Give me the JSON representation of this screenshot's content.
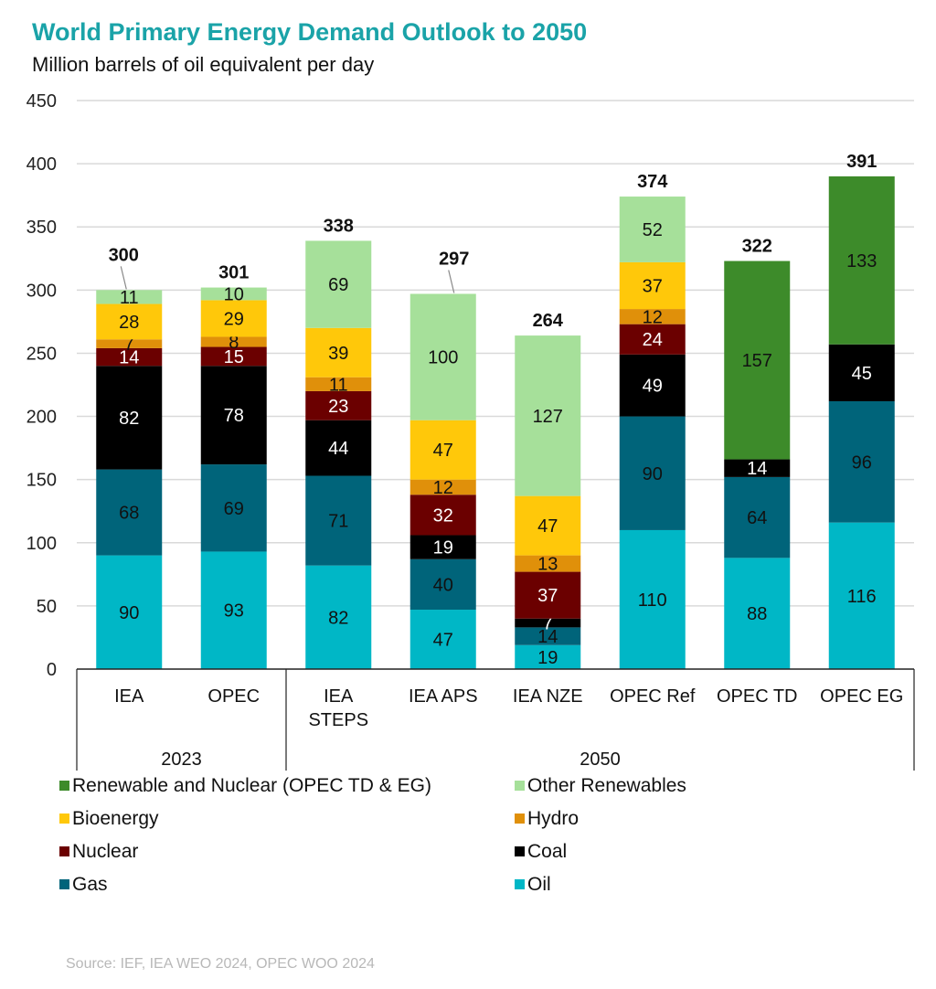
{
  "chart_data": {
    "type": "bar",
    "stacked": true,
    "title": "World Primary Energy Demand Outlook to 2050",
    "subtitle": "Million barrels of oil equivalent per day",
    "xlabel": "",
    "ylabel": "",
    "ylim": [
      0,
      450
    ],
    "yticks": [
      0,
      50,
      100,
      150,
      200,
      250,
      300,
      350,
      400,
      450
    ],
    "grid": true,
    "categories": [
      "IEA",
      "OPEC",
      "IEA STEPS",
      "IEA APS",
      "IEA NZE",
      "OPEC Ref",
      "OPEC TD",
      "OPEC EG"
    ],
    "category_lines": [
      [
        "IEA"
      ],
      [
        "OPEC"
      ],
      [
        "IEA",
        "STEPS"
      ],
      [
        "IEA APS"
      ],
      [
        "IEA NZE"
      ],
      [
        "OPEC Ref"
      ],
      [
        "OPEC TD"
      ],
      [
        "OPEC EG"
      ]
    ],
    "groups": [
      {
        "label": "2023",
        "categories": [
          "IEA",
          "OPEC"
        ]
      },
      {
        "label": "2050",
        "categories": [
          "IEA STEPS",
          "IEA APS",
          "IEA NZE",
          "OPEC Ref",
          "OPEC TD",
          "OPEC EG"
        ]
      }
    ],
    "totals": [
      300,
      301,
      338,
      297,
      264,
      374,
      322,
      391
    ],
    "series": [
      {
        "name": "Oil",
        "color": "#00b7c6",
        "label_color": "#111111",
        "values": [
          90,
          93,
          82,
          47,
          19,
          110,
          88,
          116
        ]
      },
      {
        "name": "Gas",
        "color": "#00647a",
        "label_color": "#111111",
        "values": [
          68,
          69,
          71,
          40,
          14,
          90,
          64,
          96
        ]
      },
      {
        "name": "Coal",
        "color": "#000000",
        "label_color": "#ffffff",
        "values": [
          82,
          78,
          44,
          19,
          7,
          49,
          14,
          45
        ]
      },
      {
        "name": "Nuclear",
        "color": "#6b0000",
        "label_color": "#ffffff",
        "values": [
          14,
          15,
          23,
          32,
          37,
          24,
          null,
          null
        ]
      },
      {
        "name": "Hydro",
        "color": "#e0900a",
        "label_color": "#111111",
        "values": [
          7,
          8,
          11,
          12,
          13,
          12,
          null,
          null
        ]
      },
      {
        "name": "Bioenergy",
        "color": "#ffc80a",
        "label_color": "#111111",
        "values": [
          28,
          29,
          39,
          47,
          47,
          37,
          null,
          null
        ]
      },
      {
        "name": "Other Renewables",
        "color": "#a6e09a",
        "label_color": "#111111",
        "values": [
          11,
          10,
          69,
          100,
          127,
          52,
          null,
          null
        ]
      },
      {
        "name": "Renewable and Nuclear (OPEC TD & EG)",
        "color": "#3d8b2a",
        "label_color": "#111111",
        "values": [
          null,
          null,
          null,
          null,
          null,
          null,
          157,
          133
        ]
      }
    ],
    "legend": {
      "placement": "bottom",
      "items": [
        {
          "name": "Renewable and Nuclear (OPEC TD & EG)",
          "color": "#3d8b2a"
        },
        {
          "name": "Other Renewables",
          "color": "#a6e09a"
        },
        {
          "name": "Bioenergy",
          "color": "#ffc80a"
        },
        {
          "name": "Hydro",
          "color": "#e0900a"
        },
        {
          "name": "Nuclear",
          "color": "#6b0000"
        },
        {
          "name": "Coal",
          "color": "#000000"
        },
        {
          "name": "Gas",
          "color": "#00647a"
        },
        {
          "name": "Oil",
          "color": "#00b7c6"
        }
      ]
    }
  },
  "header": {
    "title": "World Primary Energy Demand Outlook to 2050",
    "subtitle": "Million barrels of oil equivalent per day"
  },
  "footer": {
    "source": "Source: IEF, IEA WEO 2024, OPEC WOO 2024"
  }
}
